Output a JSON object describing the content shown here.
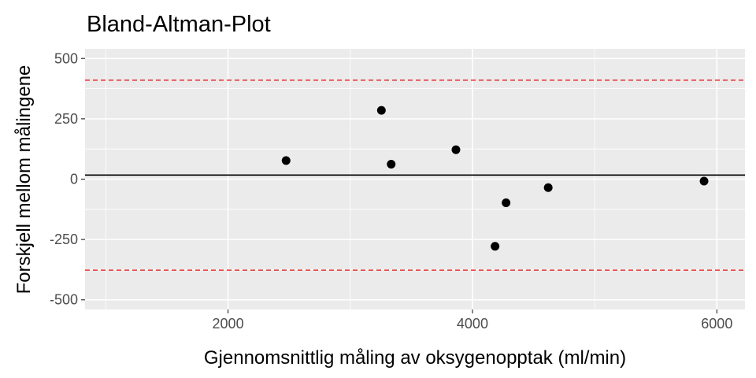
{
  "chart_data": {
    "type": "scatter",
    "title": "Bland-Altman-Plot",
    "xlabel": "Gjennomsnittlig måling av oksygenopptak (ml/min)",
    "ylabel": "Forskjell mellom målingene",
    "xlim": [
      830,
      6230
    ],
    "ylim": [
      -540,
      540
    ],
    "x_ticks": [
      2000,
      4000,
      6000
    ],
    "y_ticks": [
      -500,
      -250,
      0,
      250,
      500
    ],
    "x_minor_ticks": [
      1000,
      3000,
      5000
    ],
    "y_minor_ticks": [
      -375,
      -125,
      125,
      375
    ],
    "grid": true,
    "background_color": "#ebebeb",
    "point_color": "#000000",
    "mean_line": {
      "y": 17,
      "color": "#000000",
      "style": "solid"
    },
    "limits_of_agreement": [
      {
        "y": 410,
        "color": "#e41a1c",
        "style": "dashed"
      },
      {
        "y": -377,
        "color": "#e41a1c",
        "style": "dashed"
      }
    ],
    "points": [
      {
        "x": 2475,
        "y": 77
      },
      {
        "x": 3255,
        "y": 285
      },
      {
        "x": 3335,
        "y": 62
      },
      {
        "x": 3865,
        "y": 122
      },
      {
        "x": 4185,
        "y": -278
      },
      {
        "x": 4275,
        "y": -98
      },
      {
        "x": 4620,
        "y": -35
      },
      {
        "x": 5895,
        "y": -8
      }
    ]
  }
}
